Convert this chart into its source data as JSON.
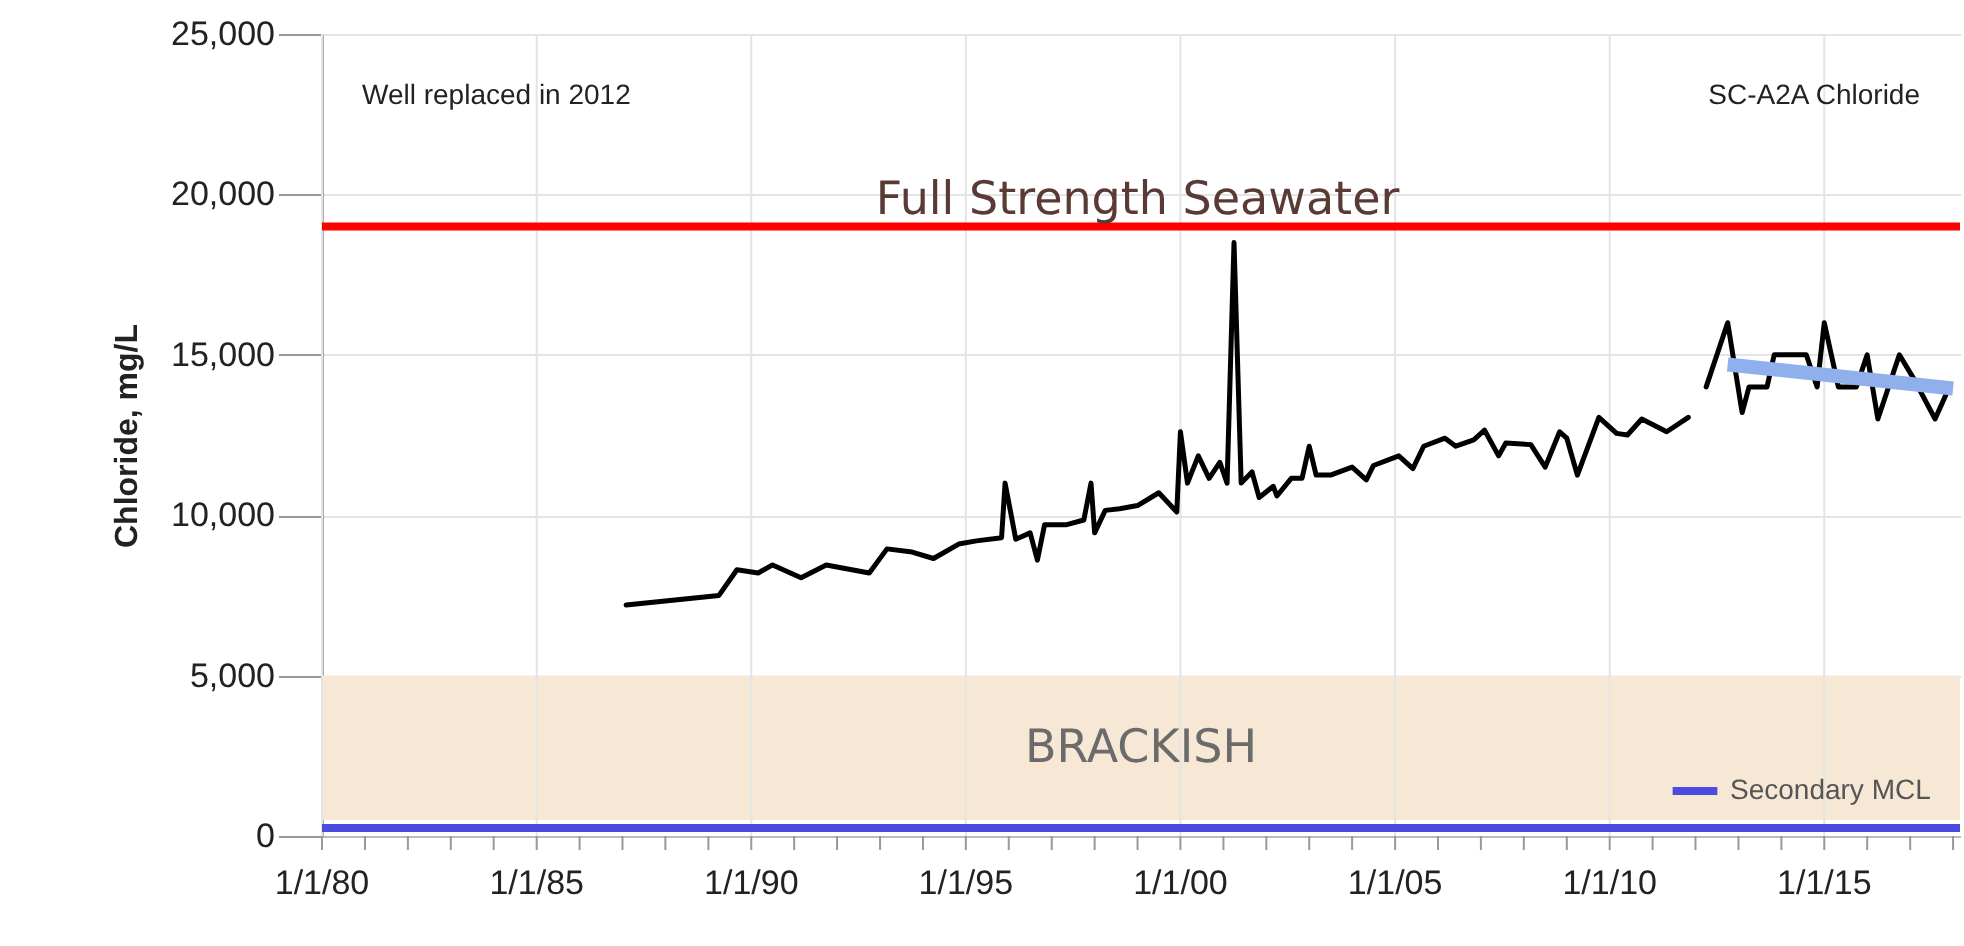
{
  "chart_data": {
    "type": "line",
    "ylabel": "Chloride, mg/L",
    "annotations": [
      "Well replaced in 2012",
      "SC-A2A Chloride",
      {
        "text": "Full Strength Seawater",
        "x": "1999-01-01",
        "y": 19000
      }
    ],
    "xlim": [
      "1980-01-01",
      "2018-03-01"
    ],
    "xticks": [
      {
        "value": "1980-01-01",
        "label": "1/1/80"
      },
      {
        "value": "1981-01-01",
        "label": null
      },
      {
        "value": "1982-01-01",
        "label": null
      },
      {
        "value": "1983-01-01",
        "label": null
      },
      {
        "value": "1984-01-01",
        "label": null
      },
      {
        "value": "1985-01-01",
        "label": "1/1/85"
      },
      {
        "value": "1986-01-01",
        "label": null
      },
      {
        "value": "1987-01-01",
        "label": null
      },
      {
        "value": "1988-01-01",
        "label": null
      },
      {
        "value": "1989-01-01",
        "label": null
      },
      {
        "value": "1990-01-01",
        "label": "1/1/90"
      },
      {
        "value": "1991-01-01",
        "label": null
      },
      {
        "value": "1992-01-01",
        "label": null
      },
      {
        "value": "1993-01-01",
        "label": null
      },
      {
        "value": "1994-01-01",
        "label": null
      },
      {
        "value": "1995-01-01",
        "label": "1/1/95"
      },
      {
        "value": "1996-01-01",
        "label": null
      },
      {
        "value": "1997-01-01",
        "label": null
      },
      {
        "value": "1998-01-01",
        "label": null
      },
      {
        "value": "1999-01-01",
        "label": null
      },
      {
        "value": "2000-01-01",
        "label": "1/1/00"
      },
      {
        "value": "2001-01-01",
        "label": null
      },
      {
        "value": "2002-01-01",
        "label": null
      },
      {
        "value": "2003-01-01",
        "label": null
      },
      {
        "value": "2004-01-01",
        "label": null
      },
      {
        "value": "2005-01-01",
        "label": "1/1/05"
      },
      {
        "value": "2006-01-01",
        "label": null
      },
      {
        "value": "2007-01-01",
        "label": null
      },
      {
        "value": "2008-01-01",
        "label": null
      },
      {
        "value": "2009-01-01",
        "label": null
      },
      {
        "value": "2010-01-01",
        "label": "1/1/10"
      },
      {
        "value": "2011-01-01",
        "label": null
      },
      {
        "value": "2012-01-01",
        "label": null
      },
      {
        "value": "2013-01-01",
        "label": null
      },
      {
        "value": "2014-01-01",
        "label": null
      },
      {
        "value": "2015-01-01",
        "label": "1/1/15"
      },
      {
        "value": "2016-01-01",
        "label": null
      },
      {
        "value": "2017-01-01",
        "label": null
      },
      {
        "value": "2018-01-01",
        "label": null
      }
    ],
    "ylim": [
      0,
      25000
    ],
    "yticks": [
      {
        "value": 0,
        "label": "0"
      },
      {
        "value": 5000,
        "label": "5,000"
      },
      {
        "value": 10000,
        "label": "10,000"
      },
      {
        "value": 15000,
        "label": "15,000"
      },
      {
        "value": 20000,
        "label": "20,000"
      },
      {
        "value": 25000,
        "label": "25,000"
      }
    ],
    "grid": true,
    "legend": "bottom right",
    "ref_lines": [
      {
        "axis": "y",
        "value": 19000,
        "color": "#ff0000"
      },
      {
        "axis": "y",
        "value": 250,
        "label": "Secondary MCL",
        "color": "#4b4be0"
      }
    ],
    "bands": [
      {
        "axis": "y",
        "from": 500,
        "to": 5000,
        "label": "BRACKISH",
        "color": "#f7e8d5"
      }
    ],
    "series": [
      {
        "color": "#000000",
        "x": [
          "1987-02",
          "1989-04",
          "1989-09",
          "1990-03",
          "1990-07",
          "1991-03",
          "1991-10",
          "1992-10",
          "1993-03",
          "1993-10",
          "1994-04",
          "1994-11",
          "1995-04",
          "1995-11",
          "1995-12",
          "1996-03",
          "1996-07",
          "1996-09",
          "1996-11",
          "1997-05",
          "1997-10",
          "1997-12",
          "1998-01",
          "1998-04",
          "1998-08",
          "1999-01",
          "1999-07",
          "1999-12",
          "2000-01",
          "2000-03",
          "2000-06",
          "2000-09",
          "2000-12",
          "2001-02",
          "2001-04",
          "2001-06",
          "2001-09",
          "2001-11",
          "2002-03",
          "2002-04",
          "2002-08",
          "2002-11",
          "2003-01",
          "2003-03",
          "2003-07",
          "2004-01",
          "2004-05",
          "2004-07",
          "2005-02",
          "2005-06",
          "2005-09",
          "2006-03",
          "2006-06",
          "2006-11",
          "2007-02",
          "2007-06",
          "2007-08",
          "2008-03",
          "2008-07",
          "2008-11",
          "2009-01",
          "2009-04",
          "2009-10",
          "2010-03",
          "2010-06",
          "2010-10",
          "2011-05",
          "2011-11",
          "2012-01",
          "2012-04",
          "2012-10",
          "2013-02",
          "2013-04",
          "2013-09",
          "2013-11",
          "2014-08",
          "2014-11",
          "2015-01",
          "2015-05",
          "2015-10",
          "2016-01",
          "2016-04",
          "2016-10",
          "2017-02",
          "2017-08",
          "2017-12"
        ],
        "values": [
          7200,
          7500,
          8300,
          8200,
          8450,
          8050,
          8450,
          8200,
          8950,
          8850,
          8650,
          9100,
          9200,
          9300,
          11000,
          9250,
          9450,
          8600,
          9700,
          9700,
          9850,
          11000,
          9450,
          10150,
          10200,
          10300,
          10700,
          10100,
          12600,
          11000,
          11850,
          11150,
          11650,
          11000,
          18500,
          11000,
          11350,
          10550,
          10900,
          10600,
          11150,
          11150,
          12150,
          11250,
          11250,
          11500,
          11100,
          11550,
          11850,
          11450,
          12150,
          12400,
          12150,
          12350,
          12650,
          11850,
          12250,
          12200,
          11500,
          12600,
          12400,
          11250,
          13050,
          12550,
          12500,
          13000,
          12600,
          13050,
          null,
          14000,
          16000,
          13200,
          14000,
          14000,
          15000,
          15000,
          14000,
          16000,
          14000,
          14000,
          15000,
          13000,
          15000,
          14250,
          13000,
          14000
        ]
      },
      {
        "type": "line",
        "color": "#8fb0ec",
        "x": [
          "2012-10",
          "2018-01"
        ],
        "values": [
          14700,
          13950
        ]
      }
    ]
  }
}
